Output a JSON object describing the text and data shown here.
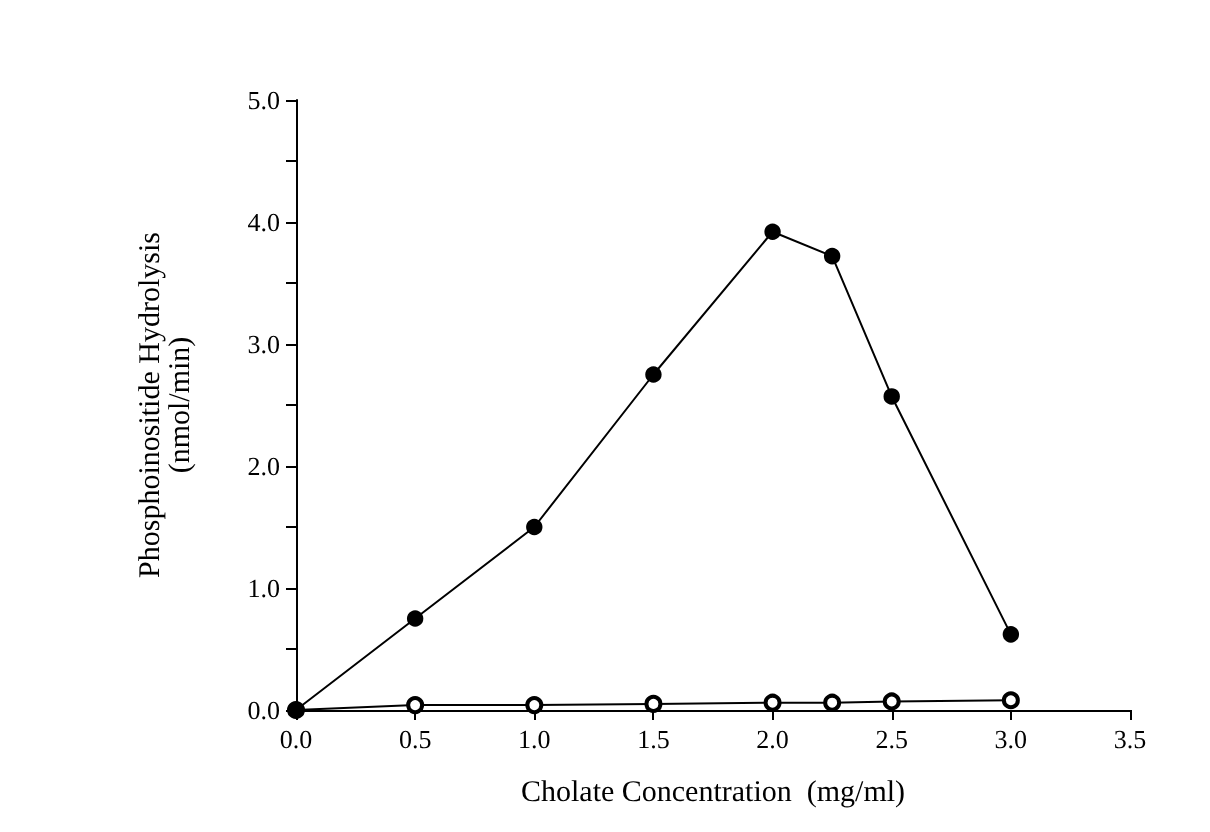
{
  "chart_data": {
    "type": "line",
    "xlabel": "Cholate Concentration  (mg/ml)",
    "ylabel": "Phosphoinositide Hydrolysis\n(nmol/min)",
    "x": [
      0,
      0.5,
      1.0,
      1.5,
      2.0,
      2.25,
      2.5,
      3.0
    ],
    "series": [
      {
        "color": "#000000",
        "values": [
          0,
          0.75,
          1.5,
          2.75,
          3.92,
          3.72,
          2.57,
          0.62
        ]
      },
      {
        "color": "#000000",
        "values": [
          0,
          0.04,
          0.04,
          0.05,
          0.06,
          0.06,
          0.07,
          0.08
        ]
      }
    ],
    "xlim": [
      0,
      3.5
    ],
    "xticks": [
      {
        "value": 0,
        "label": "0.0"
      },
      {
        "value": 0.5,
        "label": "0.5"
      },
      {
        "value": 1,
        "label": "1.0"
      },
      {
        "value": 1.5,
        "label": "1.5"
      },
      {
        "value": 2,
        "label": "2.0"
      },
      {
        "value": 2.5,
        "label": "2.5"
      },
      {
        "value": 3,
        "label": "3.0"
      },
      {
        "value": 3.5,
        "label": "3.5"
      }
    ],
    "ylim": [
      0,
      5
    ],
    "yticks": [
      {
        "value": 0,
        "label": "0.0"
      },
      {
        "value": 0.5,
        "label": null
      },
      {
        "value": 1,
        "label": "1.0"
      },
      {
        "value": 1.5,
        "label": null
      },
      {
        "value": 2,
        "label": "2.0"
      },
      {
        "value": 2.5,
        "label": null
      },
      {
        "value": 3,
        "label": "3.0"
      },
      {
        "value": 3.5,
        "label": null
      },
      {
        "value": 4,
        "label": "4.0"
      },
      {
        "value": 4.5,
        "label": null
      },
      {
        "value": 5,
        "label": "5.0"
      }
    ],
    "grid": false,
    "marker": "circle",
    "line_style": "solid"
  }
}
